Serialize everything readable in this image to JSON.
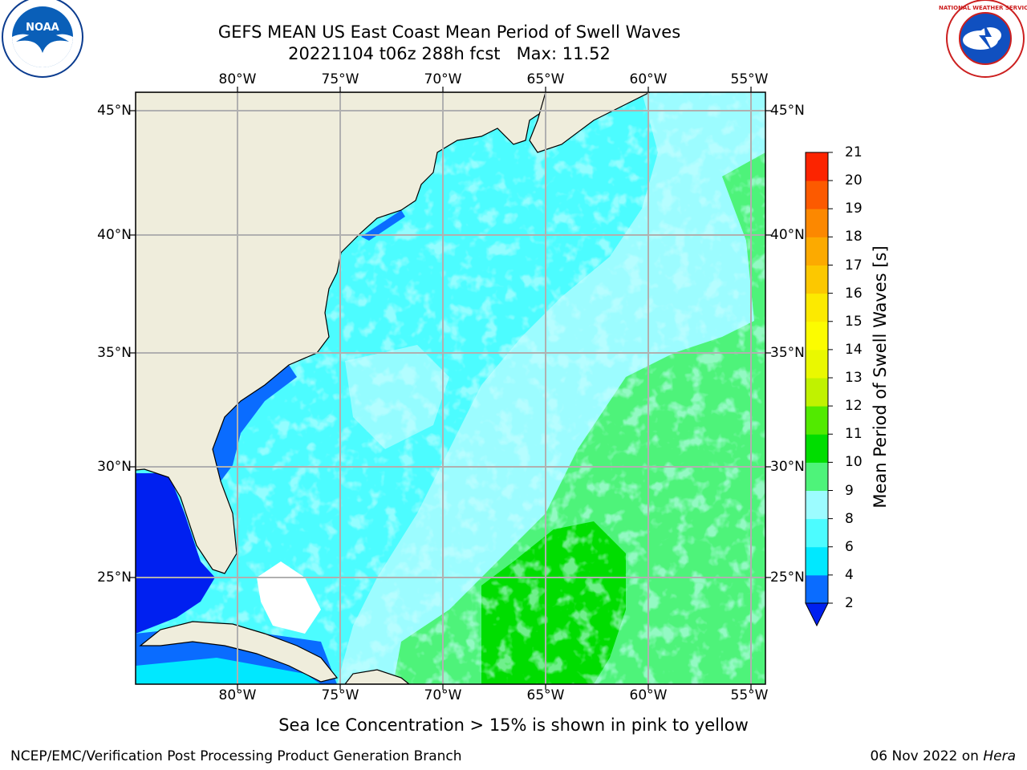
{
  "title": {
    "line1": "GEFS MEAN US East Coast Mean Period of Swell Waves",
    "line2": "20221104 t06z 288h fcst   Max: 11.52"
  },
  "map": {
    "lon_ticks": [
      "80°W",
      "75°W",
      "70°W",
      "65°W",
      "60°W",
      "55°W"
    ],
    "lat_ticks": [
      "45°N",
      "40°N",
      "35°N",
      "30°N",
      "25°N"
    ],
    "land_color": "#efeddc",
    "grid_color": "#b0b0b0"
  },
  "colorbar": {
    "title": "Mean Period of Swell Waves [s]",
    "ticks": [
      "2",
      "4",
      "6",
      "8",
      "9",
      "10",
      "11",
      "12",
      "13",
      "14",
      "15",
      "16",
      "17",
      "18",
      "19",
      "20",
      "21"
    ],
    "colors": [
      "#0a6cff",
      "#00e8ff",
      "#4cfcff",
      "#9cfcff",
      "#4ef37a",
      "#00dd00",
      "#52ea00",
      "#c0f200",
      "#eaf800",
      "#fcfc00",
      "#fcea00",
      "#fcc800",
      "#fcaa00",
      "#fc8800",
      "#fc5a00",
      "#fc2400"
    ],
    "under_color": "#0020f0"
  },
  "note": "Sea Ice Concentration > 15% is shown in pink to yellow",
  "footer": {
    "left": "NCEP/EMC/Verification Post Processing Product Generation Branch",
    "date": "06 Nov 2022 on",
    "host": "Hera"
  },
  "logos": {
    "noaa_text": "NOAA",
    "nws_text": "NATIONAL WEATHER SERVICE"
  }
}
